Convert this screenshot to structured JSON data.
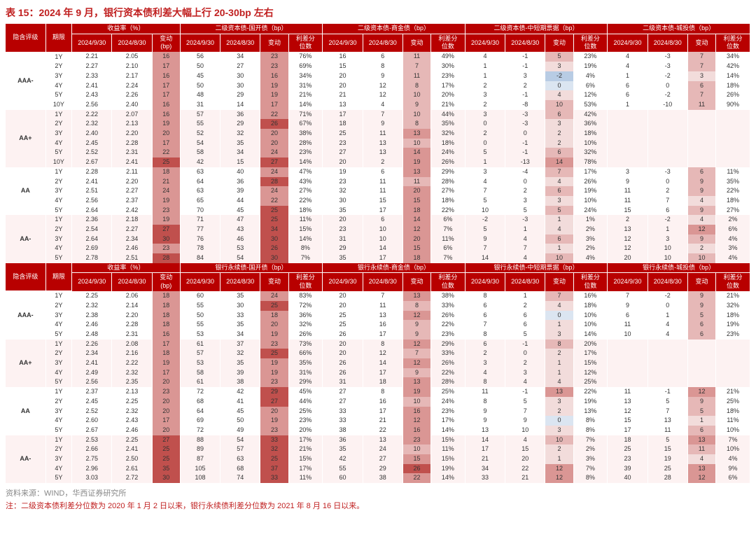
{
  "title": "表 15：2024 年 9 月，银行资本债利差大幅上行 20-30bp 左右",
  "source_label": "资料来源：",
  "source_value": "WIND，华西证券研究所",
  "note_label": "注：",
  "note_value": "二级资本债利差分位数为 2020 年 1 月 2 日以来，银行永续债利差分位数为 2021 年 8 月 16 日以来。",
  "header_rating": "隐含评级",
  "header_term": "期限",
  "group_yield": "收益率（%）",
  "group_sec1_g": [
    "二级资本债-国开债（bp）",
    "二级资本债-商金债（bp）",
    "二级资本债-中短期票据（bp）",
    "二级资本债-城投债（bp）"
  ],
  "group_sec2_g": [
    "银行永续债-国开债（bp）",
    "银行永续债-商金债（bp）",
    "银行永续债-中短期票据（bp）",
    "银行永续债-城投债（bp）"
  ],
  "sub_cols_yield": [
    "2024/9/30",
    "2024/8/30",
    "变动\n(bp)"
  ],
  "sub_cols_grp": [
    "2024/9/30",
    "2024/8/30",
    "变动",
    "利差分\n位数"
  ],
  "heat_colors": {
    "neg3": "#4f81bd",
    "neg2": "#7aa0d4",
    "neg1": "#b8cce4",
    "z": "#dbe5f1",
    "p1": "#f2dcdb",
    "p2": "#e6b8b7",
    "p3": "#da9694",
    "p4": "#c0504d"
  },
  "section1": [
    {
      "rating": "AAA-",
      "rows": [
        [
          "1Y",
          "2.21",
          "2.05",
          "16",
          "56",
          "34",
          "23",
          "76%",
          "16",
          "6",
          "11",
          "49%",
          "4",
          "-1",
          "5",
          "23%",
          "4",
          "-3",
          "7",
          "34%"
        ],
        [
          "2Y",
          "2.27",
          "2.10",
          "17",
          "50",
          "27",
          "23",
          "69%",
          "15",
          "8",
          "7",
          "30%",
          "1",
          "-1",
          "3",
          "19%",
          "4",
          "-3",
          "7",
          "42%"
        ],
        [
          "3Y",
          "2.33",
          "2.17",
          "16",
          "45",
          "30",
          "16",
          "34%",
          "20",
          "9",
          "11",
          "23%",
          "1",
          "3",
          "-2",
          "4%",
          "1",
          "-2",
          "3",
          "14%"
        ],
        [
          "4Y",
          "2.41",
          "2.24",
          "17",
          "50",
          "30",
          "19",
          "31%",
          "20",
          "12",
          "8",
          "17%",
          "2",
          "2",
          "0",
          "6%",
          "6",
          "0",
          "6",
          "18%"
        ],
        [
          "5Y",
          "2.43",
          "2.26",
          "17",
          "48",
          "29",
          "19",
          "21%",
          "21",
          "12",
          "10",
          "20%",
          "3",
          "-1",
          "4",
          "12%",
          "6",
          "-2",
          "7",
          "26%"
        ],
        [
          "10Y",
          "2.56",
          "2.40",
          "16",
          "31",
          "14",
          "17",
          "14%",
          "13",
          "4",
          "9",
          "21%",
          "2",
          "-8",
          "10",
          "53%",
          "1",
          "-10",
          "11",
          "90%"
        ]
      ]
    },
    {
      "rating": "AA+",
      "rows": [
        [
          "1Y",
          "2.22",
          "2.07",
          "16",
          "57",
          "36",
          "22",
          "71%",
          "17",
          "7",
          "10",
          "44%",
          "3",
          "-3",
          "6",
          "42%",
          "",
          "",
          "",
          ""
        ],
        [
          "2Y",
          "2.32",
          "2.13",
          "19",
          "55",
          "29",
          "26",
          "67%",
          "18",
          "9",
          "8",
          "35%",
          "0",
          "-3",
          "3",
          "36%",
          "",
          "",
          "",
          ""
        ],
        [
          "3Y",
          "2.40",
          "2.20",
          "20",
          "52",
          "32",
          "20",
          "38%",
          "25",
          "11",
          "13",
          "32%",
          "2",
          "0",
          "2",
          "18%",
          "",
          "",
          "",
          ""
        ],
        [
          "4Y",
          "2.45",
          "2.28",
          "17",
          "54",
          "35",
          "20",
          "28%",
          "23",
          "13",
          "10",
          "18%",
          "0",
          "-1",
          "2",
          "10%",
          "",
          "",
          "",
          ""
        ],
        [
          "5Y",
          "2.52",
          "2.31",
          "22",
          "58",
          "34",
          "24",
          "23%",
          "27",
          "13",
          "14",
          "24%",
          "5",
          "-1",
          "6",
          "32%",
          "",
          "",
          "",
          ""
        ],
        [
          "10Y",
          "2.67",
          "2.41",
          "25",
          "42",
          "15",
          "27",
          "14%",
          "20",
          "2",
          "19",
          "26%",
          "1",
          "-13",
          "14",
          "78%",
          "",
          "",
          "",
          ""
        ]
      ]
    },
    {
      "rating": "AA",
      "rows": [
        [
          "1Y",
          "2.28",
          "2.11",
          "18",
          "63",
          "40",
          "24",
          "47%",
          "19",
          "6",
          "13",
          "29%",
          "3",
          "-4",
          "7",
          "17%",
          "3",
          "-3",
          "6",
          "11%"
        ],
        [
          "2Y",
          "2.41",
          "2.20",
          "21",
          "64",
          "36",
          "28",
          "43%",
          "23",
          "11",
          "11",
          "28%",
          "4",
          "0",
          "4",
          "26%",
          "9",
          "0",
          "9",
          "35%"
        ],
        [
          "3Y",
          "2.51",
          "2.27",
          "24",
          "63",
          "39",
          "24",
          "27%",
          "32",
          "11",
          "20",
          "27%",
          "7",
          "2",
          "6",
          "19%",
          "11",
          "2",
          "9",
          "22%"
        ],
        [
          "4Y",
          "2.56",
          "2.37",
          "19",
          "65",
          "44",
          "22",
          "22%",
          "30",
          "15",
          "15",
          "18%",
          "5",
          "3",
          "3",
          "10%",
          "11",
          "7",
          "4",
          "18%"
        ],
        [
          "5Y",
          "2.64",
          "2.42",
          "23",
          "70",
          "45",
          "25",
          "18%",
          "35",
          "17",
          "18",
          "22%",
          "10",
          "5",
          "5",
          "24%",
          "15",
          "6",
          "9",
          "27%"
        ]
      ]
    },
    {
      "rating": "AA-",
      "rows": [
        [
          "1Y",
          "2.36",
          "2.18",
          "19",
          "71",
          "47",
          "25",
          "11%",
          "20",
          "6",
          "14",
          "6%",
          "-2",
          "-3",
          "1",
          "1%",
          "2",
          "-2",
          "4",
          "2%"
        ],
        [
          "2Y",
          "2.54",
          "2.27",
          "27",
          "77",
          "43",
          "34",
          "15%",
          "23",
          "10",
          "12",
          "7%",
          "5",
          "1",
          "4",
          "2%",
          "13",
          "1",
          "12",
          "6%"
        ],
        [
          "3Y",
          "2.64",
          "2.34",
          "30",
          "76",
          "46",
          "30",
          "14%",
          "31",
          "10",
          "20",
          "11%",
          "9",
          "4",
          "6",
          "3%",
          "12",
          "3",
          "9",
          "4%"
        ],
        [
          "4Y",
          "2.69",
          "2.46",
          "23",
          "78",
          "53",
          "26",
          "8%",
          "29",
          "14",
          "15",
          "6%",
          "7",
          "7",
          "1",
          "2%",
          "12",
          "10",
          "2",
          "3%"
        ],
        [
          "5Y",
          "2.78",
          "2.51",
          "28",
          "84",
          "54",
          "30",
          "7%",
          "35",
          "17",
          "18",
          "7%",
          "14",
          "4",
          "10",
          "4%",
          "20",
          "10",
          "10",
          "4%"
        ]
      ]
    }
  ],
  "section2": [
    {
      "rating": "AAA-",
      "rows": [
        [
          "1Y",
          "2.25",
          "2.06",
          "18",
          "60",
          "35",
          "24",
          "83%",
          "20",
          "7",
          "13",
          "38%",
          "8",
          "1",
          "7",
          "16%",
          "7",
          "-2",
          "9",
          "21%"
        ],
        [
          "2Y",
          "2.32",
          "2.14",
          "18",
          "55",
          "30",
          "25",
          "72%",
          "20",
          "11",
          "8",
          "33%",
          "6",
          "2",
          "4",
          "18%",
          "9",
          "0",
          "9",
          "32%"
        ],
        [
          "3Y",
          "2.38",
          "2.20",
          "18",
          "50",
          "33",
          "18",
          "36%",
          "25",
          "13",
          "12",
          "26%",
          "6",
          "6",
          "0",
          "10%",
          "6",
          "1",
          "5",
          "18%"
        ],
        [
          "4Y",
          "2.46",
          "2.28",
          "18",
          "55",
          "35",
          "20",
          "32%",
          "25",
          "16",
          "9",
          "22%",
          "7",
          "6",
          "1",
          "10%",
          "11",
          "4",
          "6",
          "19%"
        ],
        [
          "5Y",
          "2.48",
          "2.31",
          "16",
          "53",
          "34",
          "19",
          "26%",
          "26",
          "17",
          "9",
          "23%",
          "8",
          "5",
          "3",
          "14%",
          "10",
          "4",
          "6",
          "23%"
        ]
      ]
    },
    {
      "rating": "AA+",
      "rows": [
        [
          "1Y",
          "2.26",
          "2.08",
          "17",
          "61",
          "37",
          "23",
          "73%",
          "20",
          "8",
          "12",
          "29%",
          "6",
          "-1",
          "8",
          "20%",
          "",
          "",
          "",
          ""
        ],
        [
          "2Y",
          "2.34",
          "2.16",
          "18",
          "57",
          "32",
          "25",
          "66%",
          "20",
          "12",
          "7",
          "33%",
          "2",
          "0",
          "2",
          "17%",
          "",
          "",
          "",
          ""
        ],
        [
          "3Y",
          "2.41",
          "2.22",
          "19",
          "53",
          "35",
          "19",
          "35%",
          "26",
          "14",
          "12",
          "26%",
          "3",
          "2",
          "1",
          "15%",
          "",
          "",
          "",
          ""
        ],
        [
          "4Y",
          "2.49",
          "2.32",
          "17",
          "58",
          "39",
          "19",
          "31%",
          "26",
          "17",
          "9",
          "22%",
          "4",
          "3",
          "1",
          "12%",
          "",
          "",
          "",
          ""
        ],
        [
          "5Y",
          "2.56",
          "2.35",
          "20",
          "61",
          "38",
          "23",
          "29%",
          "31",
          "18",
          "13",
          "28%",
          "8",
          "4",
          "4",
          "25%",
          "",
          "",
          "",
          ""
        ]
      ]
    },
    {
      "rating": "AA",
      "rows": [
        [
          "1Y",
          "2.37",
          "2.13",
          "23",
          "72",
          "42",
          "29",
          "45%",
          "27",
          "8",
          "19",
          "25%",
          "11",
          "-1",
          "13",
          "22%",
          "11",
          "-1",
          "12",
          "21%"
        ],
        [
          "2Y",
          "2.45",
          "2.25",
          "20",
          "68",
          "41",
          "27",
          "44%",
          "27",
          "16",
          "10",
          "24%",
          "8",
          "5",
          "3",
          "19%",
          "13",
          "5",
          "9",
          "25%"
        ],
        [
          "3Y",
          "2.52",
          "2.32",
          "20",
          "64",
          "45",
          "20",
          "25%",
          "33",
          "17",
          "16",
          "23%",
          "9",
          "7",
          "2",
          "13%",
          "12",
          "7",
          "5",
          "18%"
        ],
        [
          "4Y",
          "2.60",
          "2.43",
          "17",
          "69",
          "50",
          "19",
          "23%",
          "33",
          "21",
          "12",
          "17%",
          "9",
          "9",
          "0",
          "8%",
          "15",
          "13",
          "1",
          "11%"
        ],
        [
          "5Y",
          "2.67",
          "2.46",
          "20",
          "72",
          "49",
          "23",
          "20%",
          "38",
          "22",
          "16",
          "14%",
          "13",
          "10",
          "3",
          "8%",
          "17",
          "11",
          "6",
          "10%"
        ]
      ]
    },
    {
      "rating": "AA-",
      "rows": [
        [
          "1Y",
          "2.53",
          "2.25",
          "27",
          "88",
          "54",
          "33",
          "17%",
          "36",
          "13",
          "23",
          "15%",
          "14",
          "4",
          "10",
          "7%",
          "18",
          "5",
          "13",
          "7%"
        ],
        [
          "2Y",
          "2.66",
          "2.41",
          "25",
          "89",
          "57",
          "32",
          "21%",
          "35",
          "24",
          "10",
          "11%",
          "17",
          "15",
          "2",
          "2%",
          "25",
          "15",
          "11",
          "10%"
        ],
        [
          "3Y",
          "2.75",
          "2.50",
          "25",
          "87",
          "63",
          "25",
          "15%",
          "42",
          "27",
          "15",
          "15%",
          "21",
          "20",
          "1",
          "3%",
          "23",
          "19",
          "4",
          "4%"
        ],
        [
          "4Y",
          "2.96",
          "2.61",
          "35",
          "105",
          "68",
          "37",
          "17%",
          "55",
          "29",
          "26",
          "19%",
          "34",
          "22",
          "12",
          "7%",
          "39",
          "25",
          "13",
          "9%"
        ],
        [
          "5Y",
          "3.03",
          "2.72",
          "30",
          "108",
          "74",
          "33",
          "11%",
          "60",
          "38",
          "22",
          "14%",
          "33",
          "21",
          "12",
          "8%",
          "40",
          "28",
          "12",
          "6%"
        ]
      ]
    }
  ]
}
